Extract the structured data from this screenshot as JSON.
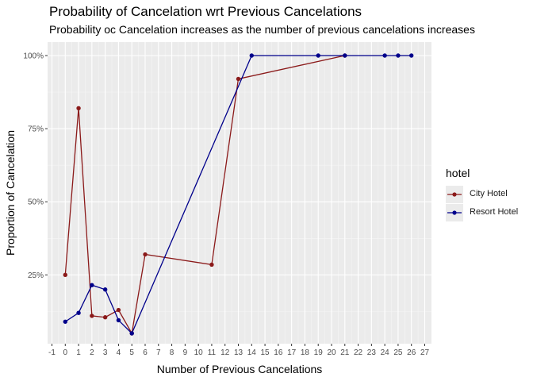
{
  "title": "Probability of Cancelation wrt Previous Cancelations",
  "subtitle": "Probability oc Cancelation increases as the number of previous cancelations increases",
  "legend": {
    "title": "hotel",
    "items": [
      {
        "label": "City Hotel",
        "color": "#8b1a1a"
      },
      {
        "label": "Resort Hotel",
        "color": "#00008b"
      }
    ]
  },
  "chart_data": {
    "type": "line",
    "xlabel": "Number of Previous Cancelations",
    "ylabel": "Proportion of Cancelation",
    "xlim": [
      -1,
      27
    ],
    "ylim": [
      0.05,
      1.01
    ],
    "x_ticks": [
      -1,
      0,
      1,
      2,
      3,
      4,
      5,
      6,
      7,
      8,
      9,
      10,
      11,
      12,
      13,
      14,
      15,
      16,
      17,
      18,
      19,
      20,
      21,
      22,
      23,
      24,
      25,
      26,
      27
    ],
    "y_ticks": [
      {
        "value": 0.25,
        "label": "25%"
      },
      {
        "value": 0.5,
        "label": "50%"
      },
      {
        "value": 0.75,
        "label": "75%"
      },
      {
        "value": 1.0,
        "label": "100%"
      }
    ],
    "grid": true,
    "legend_position": "right",
    "series": [
      {
        "name": "City Hotel",
        "color": "#8b1a1a",
        "points": [
          [
            0,
            0.25
          ],
          [
            1,
            0.82
          ],
          [
            2,
            0.11
          ],
          [
            3,
            0.105
          ],
          [
            4,
            0.13
          ],
          [
            5,
            0.05
          ],
          [
            6,
            0.32
          ],
          [
            11,
            0.285
          ],
          [
            13,
            0.92
          ],
          [
            21,
            1.0
          ]
        ]
      },
      {
        "name": "Resort Hotel",
        "color": "#00008b",
        "points": [
          [
            0,
            0.09
          ],
          [
            1,
            0.12
          ],
          [
            2,
            0.215
          ],
          [
            3,
            0.2
          ],
          [
            4,
            0.095
          ],
          [
            5,
            0.05
          ],
          [
            14,
            1.0
          ],
          [
            19,
            1.0
          ],
          [
            21,
            1.0
          ],
          [
            24,
            1.0
          ],
          [
            25,
            1.0
          ],
          [
            26,
            1.0
          ]
        ]
      }
    ]
  }
}
